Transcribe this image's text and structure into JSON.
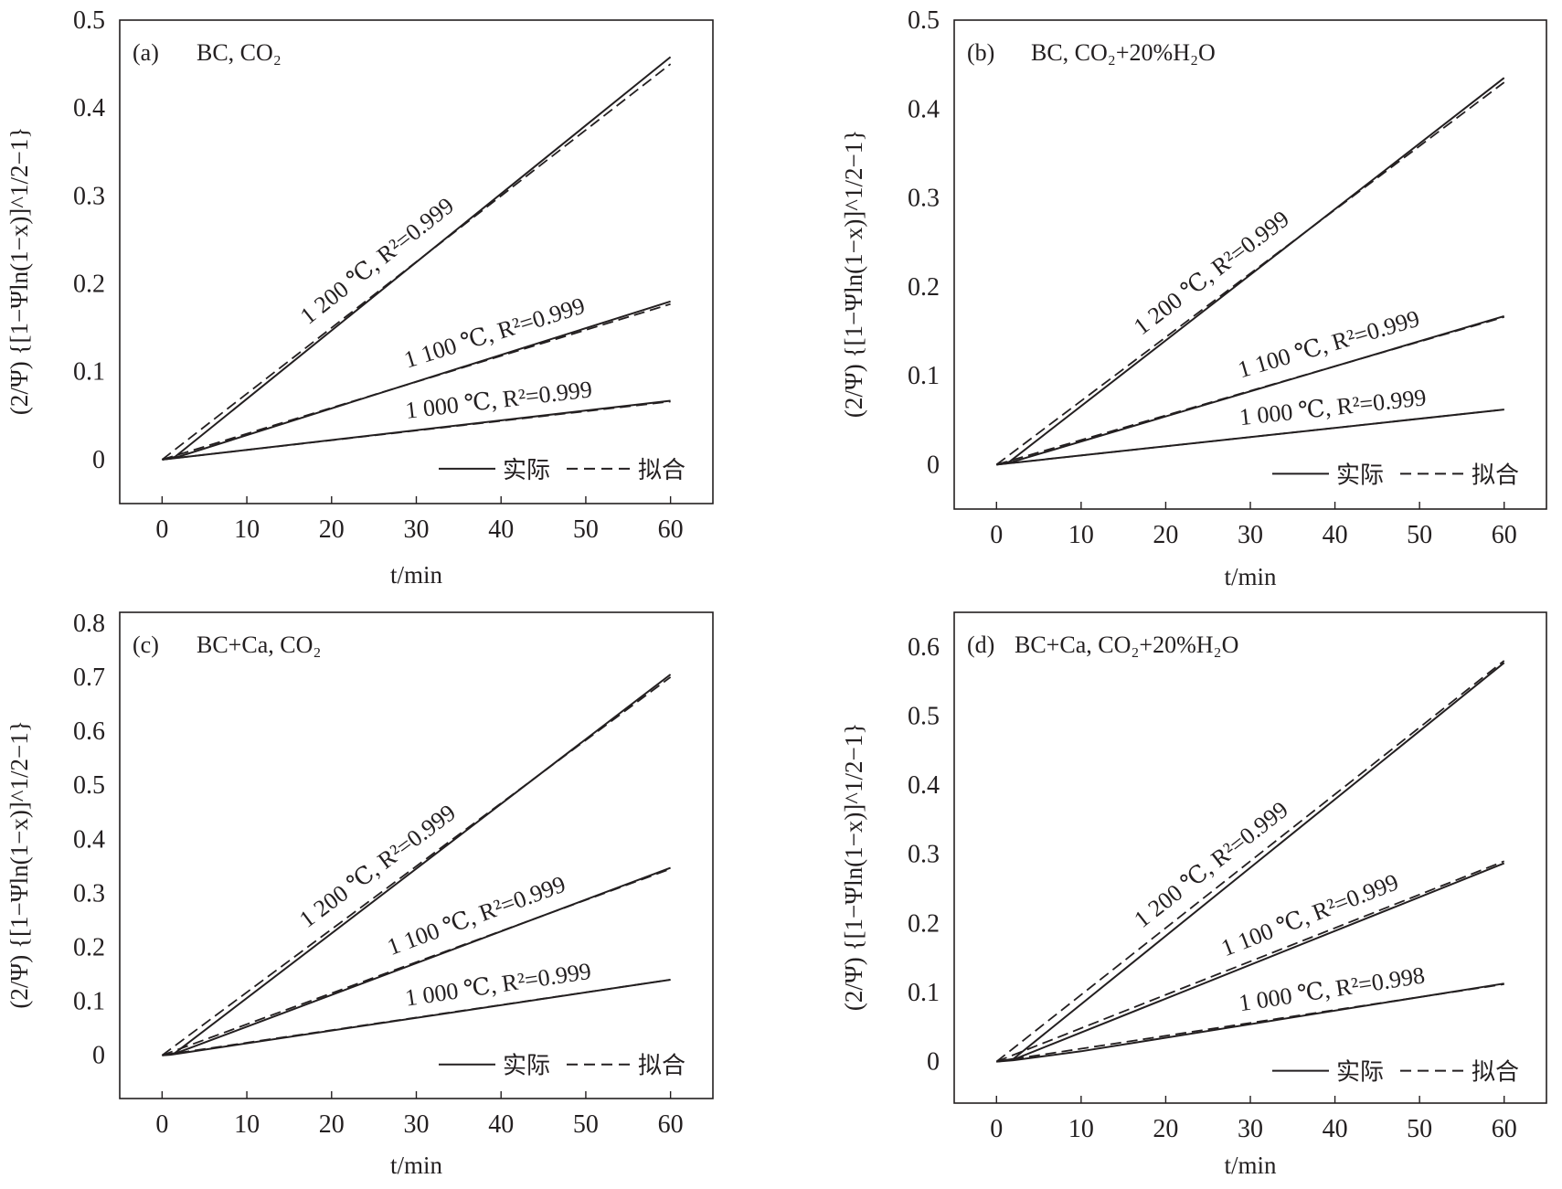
{
  "chart_data": [
    {
      "type": "line",
      "panel": "(a)",
      "title": "BC, CO₂",
      "xlabel": "t/min",
      "ylabel": "(2/Ψ) {[1−Ψln(1−x)]^1/2−1}",
      "xlim": [
        -5,
        65
      ],
      "ylim": [
        -0.05,
        0.5
      ],
      "xticks": [
        0,
        10,
        20,
        30,
        40,
        50,
        60
      ],
      "yticks": [
        0,
        0.1,
        0.2,
        0.3,
        0.4,
        0.5
      ],
      "legend": {
        "placement": "bottom-right",
        "entries": [
          "实际",
          "拟合"
        ]
      },
      "series": [
        {
          "name": "1 200 ℃, R²=0.999",
          "actual": [
            [
              0,
              0
            ],
            [
              1.5,
              0.003
            ],
            [
              60,
              0.458
            ]
          ],
          "fit": [
            [
              0,
              0
            ],
            [
              60,
              0.45
            ]
          ]
        },
        {
          "name": "1 100 ℃, R²=0.999",
          "actual": [
            [
              0,
              0
            ],
            [
              1.5,
              0.002
            ],
            [
              60,
              0.18
            ]
          ],
          "fit": [
            [
              0,
              0
            ],
            [
              60,
              0.177
            ]
          ]
        },
        {
          "name": "1 000 ℃, R²=0.999",
          "actual": [
            [
              0,
              0
            ],
            [
              1,
              0.001
            ],
            [
              60,
              0.067
            ]
          ],
          "fit": [
            [
              0,
              0
            ],
            [
              60,
              0.066
            ]
          ]
        }
      ]
    },
    {
      "type": "line",
      "panel": "(b)",
      "title": "BC, CO₂+20%H₂O",
      "xlabel": "t/min",
      "ylabel": "(2/Ψ) {[1−Ψln(1−x)]^1/2−1}",
      "xlim": [
        -5,
        65
      ],
      "ylim": [
        -0.05,
        0.5
      ],
      "xticks": [
        0,
        10,
        20,
        30,
        40,
        50,
        60
      ],
      "yticks": [
        0,
        0.1,
        0.2,
        0.3,
        0.4,
        0.5
      ],
      "legend": {
        "placement": "bottom-right",
        "entries": [
          "实际",
          "拟合"
        ]
      },
      "series": [
        {
          "name": "1 200 ℃, R²=0.999",
          "actual": [
            [
              0,
              0
            ],
            [
              1.5,
              0.003
            ],
            [
              60,
              0.435
            ]
          ],
          "fit": [
            [
              0,
              0
            ],
            [
              60,
              0.43
            ]
          ]
        },
        {
          "name": "1 100 ℃, R²=0.999",
          "actual": [
            [
              0,
              0
            ],
            [
              1.5,
              0.002
            ],
            [
              60,
              0.167
            ]
          ],
          "fit": [
            [
              0,
              0
            ],
            [
              60,
              0.166
            ]
          ]
        },
        {
          "name": "1 000 ℃, R²=0.999",
          "actual": [
            [
              0,
              0
            ],
            [
              1,
              0.001
            ],
            [
              60,
              0.062
            ]
          ],
          "fit": [
            [
              0,
              0
            ],
            [
              60,
              0.062
            ]
          ]
        }
      ]
    },
    {
      "type": "line",
      "panel": "(c)",
      "title": "BC+Ca, CO₂",
      "xlabel": "t/min",
      "ylabel": "(2/Ψ) {[1−Ψln(1−x)]^1/2−1}",
      "xlim": [
        -5,
        65
      ],
      "ylim": [
        -0.08,
        0.82
      ],
      "xticks": [
        0,
        10,
        20,
        30,
        40,
        50,
        60
      ],
      "yticks": [
        0,
        0.1,
        0.2,
        0.3,
        0.4,
        0.5,
        0.6,
        0.7,
        0.8
      ],
      "legend": {
        "placement": "bottom-right",
        "entries": [
          "实际",
          "拟合"
        ]
      },
      "series": [
        {
          "name": "1 200 ℃, R²=0.999",
          "actual": [
            [
              0,
              0
            ],
            [
              1.5,
              0.004
            ],
            [
              60,
              0.705
            ]
          ],
          "fit": [
            [
              0,
              0
            ],
            [
              60,
              0.7
            ]
          ]
        },
        {
          "name": "1 100 ℃, R²=0.999",
          "actual": [
            [
              0,
              0
            ],
            [
              1.5,
              0.003
            ],
            [
              60,
              0.347
            ]
          ],
          "fit": [
            [
              0,
              0
            ],
            [
              60,
              0.345
            ]
          ]
        },
        {
          "name": "1 000 ℃, R²=0.999",
          "actual": [
            [
              0,
              0
            ],
            [
              1,
              0.001
            ],
            [
              60,
              0.14
            ]
          ],
          "fit": [
            [
              0,
              0
            ],
            [
              60,
              0.14
            ]
          ]
        }
      ]
    },
    {
      "type": "line",
      "panel": "(d)",
      "title": "BC+Ca, CO₂+20%H₂O",
      "xlabel": "t/min",
      "ylabel": "(2/Ψ) {[1−Ψln(1−x)]^1/2−1}",
      "xlim": [
        -5,
        65
      ],
      "ylim": [
        -0.06,
        0.65
      ],
      "xticks": [
        0,
        10,
        20,
        30,
        40,
        50,
        60
      ],
      "yticks": [
        0,
        0.1,
        0.2,
        0.3,
        0.4,
        0.5,
        0.6
      ],
      "legend": {
        "placement": "bottom-right",
        "entries": [
          "实际",
          "拟合"
        ]
      },
      "series": [
        {
          "name": "1 200 ℃, R²=0.999",
          "actual": [
            [
              0,
              0
            ],
            [
              2,
              0.004
            ],
            [
              60,
              0.577
            ]
          ],
          "fit": [
            [
              0,
              0
            ],
            [
              60,
              0.58
            ]
          ]
        },
        {
          "name": "1 100 ℃, R²=0.999",
          "actual": [
            [
              0,
              0
            ],
            [
              2,
              0.003
            ],
            [
              60,
              0.287
            ]
          ],
          "fit": [
            [
              0,
              0
            ],
            [
              60,
              0.29
            ]
          ]
        },
        {
          "name": "1 000 ℃, R²=0.998",
          "actual": [
            [
              0,
              0
            ],
            [
              2,
              0.002
            ],
            [
              10,
              0.015
            ],
            [
              60,
              0.113
            ]
          ],
          "fit": [
            [
              0,
              0
            ],
            [
              60,
              0.112
            ]
          ]
        }
      ]
    }
  ]
}
